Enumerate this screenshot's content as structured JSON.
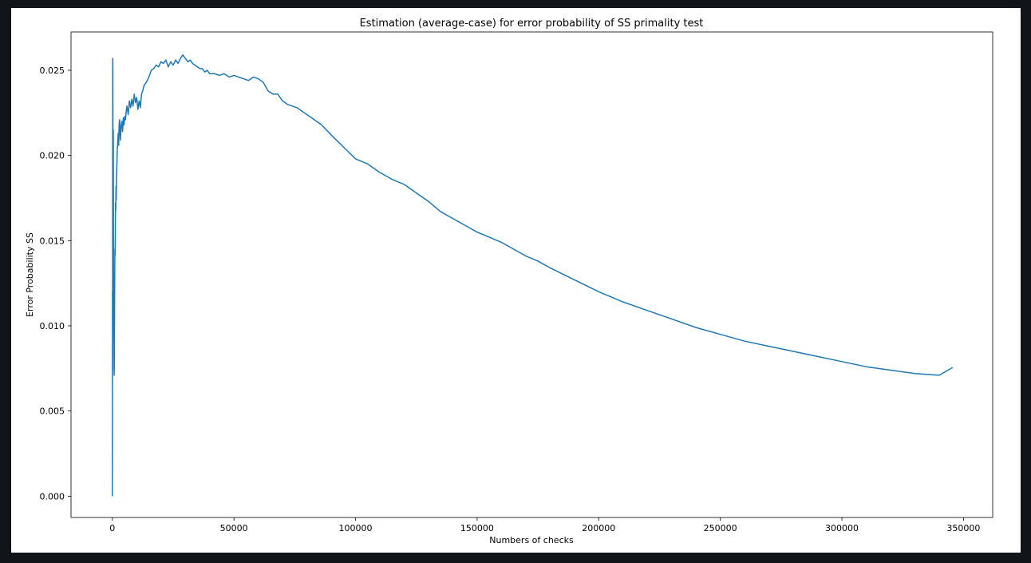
{
  "chart_data": {
    "type": "line",
    "title": "Estimation (average-case) for error probability of SS primality test",
    "xlabel": "Numbers of checks",
    "ylabel": "Error Probability SS",
    "xlim": [
      -17000,
      362000
    ],
    "ylim": [
      -0.00125,
      0.02725
    ],
    "xticks": [
      0,
      50000,
      100000,
      150000,
      200000,
      250000,
      300000,
      350000
    ],
    "xtick_labels": [
      "0",
      "50000",
      "100000",
      "150000",
      "200000",
      "250000",
      "300000",
      "350000"
    ],
    "yticks": [
      0.0,
      0.005,
      0.01,
      0.015,
      0.02,
      0.025
    ],
    "ytick_labels": [
      "0.000",
      "0.005",
      "0.010",
      "0.015",
      "0.020",
      "0.025"
    ],
    "grid": false,
    "line_color": "#1f77b4",
    "series": [
      {
        "x": [
          0,
          50,
          100,
          150,
          200,
          260,
          320,
          380,
          440,
          500,
          560,
          620,
          680,
          740,
          800,
          860,
          920,
          980,
          1040,
          1100,
          1200,
          1300,
          1400,
          1500,
          1600,
          1700,
          1800,
          1900,
          2000,
          2200,
          2400,
          2600,
          2800,
          3000,
          3300,
          3600,
          3900,
          4200,
          4500,
          4800,
          5100,
          5400,
          5700,
          6000,
          6500,
          7000,
          7500,
          8000,
          8500,
          9000,
          9500,
          10000,
          10500,
          11000,
          11500,
          12000,
          12500,
          13000,
          14000,
          15000,
          16000,
          17000,
          18000,
          19000,
          20000,
          21000,
          22000,
          23000,
          24000,
          25000,
          26000,
          27000,
          28000,
          29000,
          30000,
          31000,
          32000,
          33000,
          34000,
          35000,
          36000,
          37000,
          38000,
          39000,
          40000,
          42000,
          44000,
          46000,
          48000,
          50000,
          52000,
          54000,
          56000,
          58000,
          60000,
          62000,
          64000,
          66000,
          68000,
          70000,
          72000,
          74000,
          76000,
          78000,
          80000,
          83000,
          86000,
          90000,
          95000,
          100000,
          105000,
          110000,
          115000,
          120000,
          125000,
          130000,
          135000,
          140000,
          145000,
          150000,
          155000,
          160000,
          165000,
          170000,
          175000,
          180000,
          190000,
          200000,
          210000,
          220000,
          230000,
          240000,
          250000,
          260000,
          270000,
          280000,
          290000,
          300000,
          310000,
          320000,
          330000,
          340000,
          345500
        ],
        "y": [
          0.0,
          0.012,
          0.0074,
          0.0257,
          0.0252,
          0.0188,
          0.0165,
          0.0215,
          0.0155,
          0.0107,
          0.0123,
          0.0098,
          0.0089,
          0.0071,
          0.0077,
          0.0095,
          0.0112,
          0.0131,
          0.0145,
          0.0141,
          0.015,
          0.0172,
          0.0168,
          0.0182,
          0.0174,
          0.0188,
          0.0192,
          0.0196,
          0.0203,
          0.0207,
          0.0213,
          0.0206,
          0.0219,
          0.0221,
          0.0209,
          0.0217,
          0.022,
          0.0214,
          0.0222,
          0.0218,
          0.0223,
          0.0221,
          0.0226,
          0.0229,
          0.0224,
          0.0232,
          0.0228,
          0.0233,
          0.0229,
          0.0236,
          0.0231,
          0.0234,
          0.0227,
          0.0232,
          0.0228,
          0.0236,
          0.0238,
          0.0241,
          0.0243,
          0.0246,
          0.025,
          0.0251,
          0.0253,
          0.0252,
          0.0255,
          0.0254,
          0.0256,
          0.0252,
          0.0255,
          0.0253,
          0.0256,
          0.0254,
          0.0257,
          0.0259,
          0.0257,
          0.0255,
          0.0256,
          0.0254,
          0.0253,
          0.0252,
          0.0251,
          0.0251,
          0.0249,
          0.025,
          0.0248,
          0.0248,
          0.0247,
          0.0248,
          0.0246,
          0.0247,
          0.0246,
          0.0245,
          0.0244,
          0.0246,
          0.0245,
          0.0243,
          0.0238,
          0.0236,
          0.0236,
          0.0232,
          0.023,
          0.0229,
          0.0228,
          0.0226,
          0.0224,
          0.0221,
          0.0218,
          0.0212,
          0.0205,
          0.0198,
          0.0195,
          0.019,
          0.0186,
          0.0183,
          0.0178,
          0.0173,
          0.0167,
          0.0163,
          0.0159,
          0.0155,
          0.0152,
          0.0149,
          0.0145,
          0.0141,
          0.0138,
          0.0134,
          0.0127,
          0.012,
          0.0114,
          0.0109,
          0.0104,
          0.0099,
          0.0095,
          0.0091,
          0.0088,
          0.0085,
          0.0082,
          0.0079,
          0.0076,
          0.0074,
          0.0072,
          0.0071,
          0.00755
        ]
      }
    ]
  }
}
